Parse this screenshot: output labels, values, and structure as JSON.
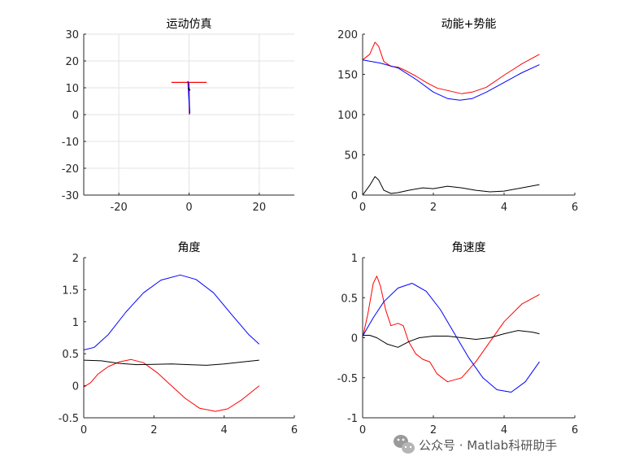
{
  "watermark": {
    "text": "公众号 · Matlab科研助手",
    "icon": "wechat-icon"
  },
  "chart_data": [
    {
      "id": "motion",
      "type": "line",
      "title": "运动仿真",
      "xlim": [
        -30,
        30
      ],
      "ylim": [
        -30,
        30
      ],
      "xticks": [
        -20,
        0,
        20
      ],
      "yticks": [
        30,
        20,
        10,
        0,
        -10,
        -20,
        -30
      ],
      "grid": true,
      "series": [
        {
          "color": "#ff0000",
          "x": [
            -5,
            5
          ],
          "y": [
            12,
            12
          ]
        },
        {
          "color": "#ff0000",
          "x": [
            0,
            0.1
          ],
          "y": [
            12,
            0
          ]
        },
        {
          "color": "#0000ff",
          "x": [
            -0.3,
            0.2
          ],
          "y": [
            12.5,
            0.5
          ]
        },
        {
          "color": "#000000",
          "x": [
            -0.2,
            0.3
          ],
          "y": [
            10,
            9
          ]
        }
      ]
    },
    {
      "id": "energy",
      "type": "line",
      "title": "动能+势能",
      "xlim": [
        0,
        6
      ],
      "ylim": [
        0,
        200
      ],
      "xticks": [
        0,
        2,
        4,
        6
      ],
      "yticks": [
        200,
        150,
        100,
        50,
        0
      ],
      "grid": false,
      "series": [
        {
          "color": "#ff0000",
          "x": [
            0,
            0.2,
            0.35,
            0.45,
            0.6,
            0.8,
            1.0,
            1.2,
            1.5,
            1.8,
            2.1,
            2.5,
            2.8,
            3.1,
            3.5,
            4.0,
            4.5,
            5.0
          ],
          "y": [
            168,
            175,
            190,
            185,
            166,
            160,
            159,
            155,
            148,
            140,
            133,
            129,
            126,
            128,
            134,
            149,
            163,
            175
          ]
        },
        {
          "color": "#0000ff",
          "x": [
            0,
            0.5,
            1.0,
            1.5,
            2.0,
            2.4,
            2.75,
            3.1,
            3.5,
            4.0,
            4.5,
            5.0
          ],
          "y": [
            168,
            164,
            158,
            144,
            128,
            120,
            118,
            120,
            128,
            140,
            152,
            162
          ]
        },
        {
          "color": "#000000",
          "x": [
            0,
            0.2,
            0.35,
            0.45,
            0.6,
            0.8,
            1.0,
            1.3,
            1.7,
            2.0,
            2.4,
            2.8,
            3.2,
            3.6,
            4.0,
            4.5,
            5.0
          ],
          "y": [
            0,
            12,
            23,
            19,
            6,
            2,
            3,
            6,
            9,
            8,
            11,
            9,
            6,
            4,
            5,
            9,
            13
          ]
        }
      ]
    },
    {
      "id": "angle",
      "type": "line",
      "title": "角度",
      "xlim": [
        0,
        6
      ],
      "ylim": [
        -0.5,
        2
      ],
      "xticks": [
        0,
        2,
        4,
        6
      ],
      "yticks": [
        2,
        1.5,
        1,
        0.5,
        0,
        -0.5
      ],
      "grid": false,
      "series": [
        {
          "color": "#0000ff",
          "x": [
            0,
            0.3,
            0.7,
            1.2,
            1.7,
            2.2,
            2.75,
            3.2,
            3.7,
            4.2,
            4.7,
            5.0
          ],
          "y": [
            0.56,
            0.6,
            0.8,
            1.15,
            1.45,
            1.65,
            1.73,
            1.66,
            1.45,
            1.12,
            0.8,
            0.65
          ]
        },
        {
          "color": "#ff0000",
          "x": [
            0,
            0.2,
            0.4,
            0.7,
            1.0,
            1.35,
            1.7,
            2.1,
            2.5,
            2.9,
            3.3,
            3.75,
            4.1,
            4.5,
            5.0
          ],
          "y": [
            -0.02,
            0.05,
            0.18,
            0.3,
            0.37,
            0.41,
            0.36,
            0.2,
            0.0,
            -0.2,
            -0.35,
            -0.4,
            -0.36,
            -0.22,
            0.0
          ]
        },
        {
          "color": "#000000",
          "x": [
            0,
            0.5,
            1.0,
            1.5,
            2.0,
            2.5,
            3.0,
            3.5,
            4.0,
            4.5,
            5.0
          ],
          "y": [
            0.4,
            0.39,
            0.35,
            0.33,
            0.335,
            0.34,
            0.33,
            0.32,
            0.34,
            0.37,
            0.4
          ]
        }
      ]
    },
    {
      "id": "velocity",
      "type": "line",
      "title": "角速度",
      "xlim": [
        0,
        6
      ],
      "ylim": [
        -1,
        1
      ],
      "xticks": [
        0,
        2,
        4,
        6
      ],
      "yticks": [
        1,
        0.5,
        0,
        -0.5,
        -1
      ],
      "grid": false,
      "series": [
        {
          "color": "#ff0000",
          "x": [
            0,
            0.15,
            0.3,
            0.4,
            0.5,
            0.65,
            0.8,
            1.0,
            1.15,
            1.3,
            1.5,
            1.7,
            1.9,
            2.1,
            2.4,
            2.8,
            3.2,
            3.6,
            4.0,
            4.5,
            5.0
          ],
          "y": [
            0.0,
            0.3,
            0.68,
            0.77,
            0.65,
            0.35,
            0.15,
            0.18,
            0.15,
            -0.05,
            -0.2,
            -0.27,
            -0.3,
            -0.45,
            -0.55,
            -0.5,
            -0.3,
            -0.05,
            0.2,
            0.42,
            0.54
          ]
        },
        {
          "color": "#0000ff",
          "x": [
            0,
            0.3,
            0.6,
            1.0,
            1.4,
            1.8,
            2.2,
            2.6,
            3.0,
            3.4,
            3.8,
            4.2,
            4.6,
            5.0
          ],
          "y": [
            0.02,
            0.25,
            0.45,
            0.62,
            0.68,
            0.58,
            0.35,
            0.05,
            -0.25,
            -0.5,
            -0.65,
            -0.68,
            -0.55,
            -0.3
          ]
        },
        {
          "color": "#000000",
          "x": [
            0,
            0.2,
            0.4,
            0.7,
            1.0,
            1.3,
            1.6,
            2.0,
            2.4,
            2.8,
            3.2,
            3.6,
            4.0,
            4.4,
            4.8,
            5.0
          ],
          "y": [
            0.03,
            0.03,
            0.0,
            -0.08,
            -0.12,
            -0.05,
            0.0,
            0.02,
            0.02,
            0.0,
            -0.02,
            0.0,
            0.05,
            0.09,
            0.07,
            0.05
          ]
        }
      ]
    }
  ]
}
